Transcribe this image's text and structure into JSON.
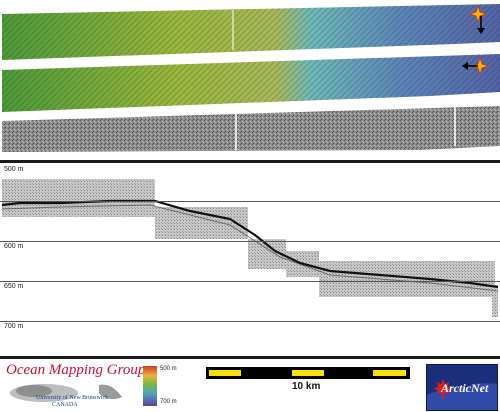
{
  "profile": {
    "depth_labels": [
      "500 m",
      "600 m",
      "650 m",
      "700 m"
    ]
  },
  "footer": {
    "org_title": "Ocean Mapping Group",
    "university_line1": "University of New Brunswick",
    "university_line2": "CANADA",
    "colorbar_top": "500 m",
    "colorbar_bottom": "700 m",
    "scale_label": "10 km",
    "partner_logo_text": "ArcticNet"
  },
  "colors": {
    "logo_red": "#c8102e",
    "arctic_blue": "#1b2f7d",
    "scale_yellow": "#f5e100"
  },
  "icons": [
    "sun-icon",
    "arrow-down-icon",
    "arrow-left-icon",
    "maple-leaf-icon"
  ]
}
